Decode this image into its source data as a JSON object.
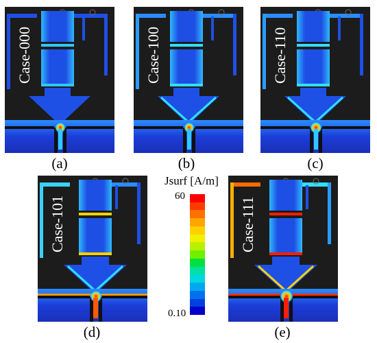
{
  "panels": [
    {
      "case_label": "Case-000",
      "caption": "(a)"
    },
    {
      "case_label": "Case-100",
      "caption": "(b)"
    },
    {
      "case_label": "Case-110",
      "caption": "(c)"
    },
    {
      "case_label": "Case-101",
      "caption": "(d)"
    },
    {
      "case_label": "Case-111",
      "caption": "(e)"
    }
  ],
  "legend": {
    "title": "Jsurf [A/m]",
    "max_label": "60",
    "min_label": "0.10",
    "colors": [
      "#ff0000",
      "#ff3a00",
      "#ff7000",
      "#ffa600",
      "#ffd000",
      "#f0f000",
      "#b8f000",
      "#70f000",
      "#00e040",
      "#00e0a0",
      "#00d8e0",
      "#00a8f0",
      "#0070f0",
      "#0040e0",
      "#0000c8"
    ]
  },
  "colors": {
    "background": "#1c1c1c",
    "strip_blue": "#1e50e6",
    "hot_red": "#ff1e00",
    "hot_yellow": "#ffd200",
    "cyan": "#30c8ff"
  }
}
